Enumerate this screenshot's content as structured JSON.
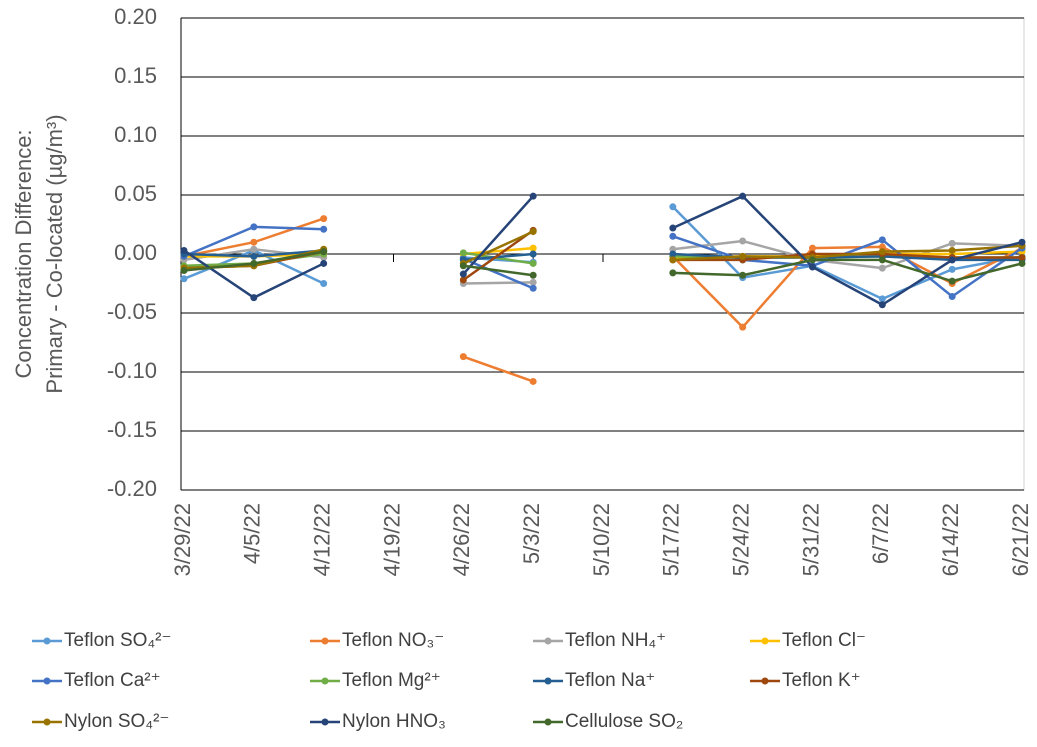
{
  "chart_data": {
    "type": "line",
    "ylabel": [
      "Concentration Difference:",
      "Primary - Co-located (µg/m³)"
    ],
    "categories": [
      "3/29/22",
      "4/5/22",
      "4/12/22",
      "4/19/22",
      "4/26/22",
      "5/3/22",
      "5/10/22",
      "5/17/22",
      "5/24/22",
      "5/31/22",
      "6/7/22",
      "6/14/22",
      "6/21/22"
    ],
    "ylim": [
      -0.2,
      0.2
    ],
    "yticks": [
      {
        "value": -0.2,
        "label": "-0.20"
      },
      {
        "value": -0.15,
        "label": "-0.15"
      },
      {
        "value": -0.1,
        "label": "-0.10"
      },
      {
        "value": -0.05,
        "label": "-0.05"
      },
      {
        "value": 0,
        "label": "0.00"
      },
      {
        "value": 0.05,
        "label": "0.05"
      },
      {
        "value": 0.1,
        "label": "0.10"
      },
      {
        "value": 0.15,
        "label": "0.15"
      },
      {
        "value": 0.2,
        "label": "0.20"
      }
    ],
    "grid": true,
    "series": [
      {
        "name": "Teflon SO₄²⁻",
        "color": "#5B9BD5",
        "values": [
          -0.021,
          0.003,
          -0.025,
          null,
          -0.003,
          -0.007,
          null,
          0.04,
          -0.02,
          -0.01,
          -0.038,
          -0.013,
          -0.002
        ]
      },
      {
        "name": "Teflon NO₃⁻",
        "color": "#ED7D31",
        "values": [
          -0.002,
          0.01,
          0.03,
          null,
          -0.087,
          -0.108,
          null,
          -0.002,
          -0.062,
          0.005,
          0.006,
          -0.025,
          0.005
        ]
      },
      {
        "name": "Teflon NH₄⁺",
        "color": "#A5A5A5",
        "values": [
          -0.005,
          0.004,
          -0.003,
          null,
          -0.025,
          -0.024,
          null,
          0.004,
          0.011,
          -0.005,
          -0.012,
          0.009,
          0.007
        ]
      },
      {
        "name": "Teflon Cl⁻",
        "color": "#FFC000",
        "values": [
          -0.002,
          -0.002,
          0.0,
          null,
          0.0,
          0.005,
          null,
          -0.003,
          -0.002,
          -0.002,
          0.0,
          0.0,
          0.002
        ]
      },
      {
        "name": "Teflon Ca²⁺",
        "color": "#4472C4",
        "values": [
          -0.002,
          0.023,
          0.021,
          null,
          -0.004,
          -0.029,
          null,
          0.015,
          -0.005,
          -0.01,
          0.012,
          -0.036,
          0.005
        ]
      },
      {
        "name": "Teflon Mg²⁺",
        "color": "#70AD47",
        "values": [
          -0.01,
          -0.008,
          0.0,
          null,
          0.001,
          -0.008,
          null,
          -0.002,
          -0.003,
          -0.003,
          -0.002,
          -0.003,
          -0.003
        ]
      },
      {
        "name": "Teflon Na⁺",
        "color": "#255E91",
        "values": [
          0.0,
          -0.002,
          0.003,
          null,
          -0.005,
          0.0,
          null,
          0.0,
          -0.003,
          -0.003,
          -0.002,
          -0.005,
          -0.005
        ]
      },
      {
        "name": "Teflon K⁺",
        "color": "#9E480E",
        "values": [
          -0.012,
          -0.01,
          0.002,
          null,
          -0.022,
          0.02,
          null,
          -0.005,
          -0.005,
          0.0,
          0.0,
          -0.003,
          -0.003
        ]
      },
      {
        "name": "Nylon SO₄²⁻",
        "color": "#997300",
        "values": [
          -0.012,
          -0.01,
          0.004,
          null,
          -0.008,
          0.019,
          null,
          -0.005,
          -0.002,
          -0.003,
          0.002,
          0.003,
          0.007
        ]
      },
      {
        "name": "Nylon HNO₃",
        "color": "#264478",
        "values": [
          0.003,
          -0.037,
          -0.008,
          null,
          -0.017,
          0.049,
          null,
          0.022,
          0.049,
          -0.011,
          -0.043,
          -0.005,
          0.01
        ]
      },
      {
        "name": "Cellulose SO₂",
        "color": "#43682B",
        "values": [
          -0.014,
          -0.008,
          0.002,
          null,
          -0.01,
          -0.018,
          null,
          -0.016,
          -0.018,
          -0.005,
          -0.005,
          -0.023,
          -0.008
        ]
      }
    ]
  }
}
